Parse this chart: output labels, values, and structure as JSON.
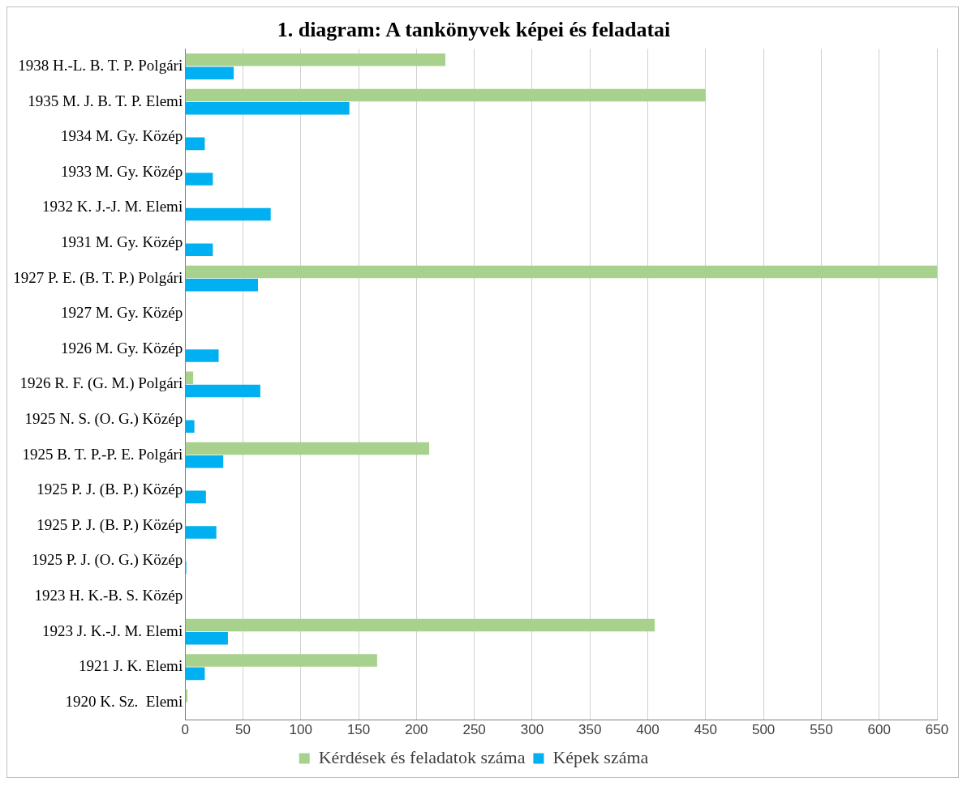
{
  "chart_data": {
    "type": "bar",
    "orientation": "horizontal",
    "title": "1. diagram: A tankönyvek képei és feladatai",
    "categories": [
      "1938 H.-L. B. T. P. Polgári",
      "1935 M. J. B. T. P. Elemi",
      "1934 M. Gy. Közép",
      "1933 M. Gy. Közép",
      "1932 K. J.-J. M. Elemi",
      "1931 M. Gy. Közép",
      "1927 P. E. (B. T. P.) Polgári",
      "1927 M. Gy. Közép",
      "1926 M. Gy. Közép",
      "1926 R. F. (G. M.) Polgári",
      "1925 N. S. (O. G.) Közép",
      "1925 B. T. P.-P. E. Polgári",
      "1925 P. J. (B. P.) Közép",
      "1925 P. J. (B. P.) Közép",
      "1925 P. J. (O. G.) Közép",
      "1923 H. K.-B. S. Közép",
      "1923 J. K.-J. M. Elemi",
      "1921 J. K. Elemi",
      "1920 K. Sz.  Elemi"
    ],
    "series": [
      {
        "name": "Kérdések és feladatok száma",
        "color": "#a9d18e",
        "values": [
          225,
          450,
          null,
          null,
          null,
          null,
          650,
          null,
          null,
          7,
          null,
          211,
          null,
          null,
          null,
          null,
          406,
          166,
          2
        ]
      },
      {
        "name": "Képek száma",
        "color": "#00b0f0",
        "values": [
          42,
          142,
          17,
          24,
          74,
          24,
          63,
          null,
          29,
          65,
          8,
          33,
          18,
          27,
          1,
          null,
          37,
          17,
          null
        ]
      }
    ],
    "xlim": [
      0,
      650
    ],
    "xticks": [
      0,
      50,
      100,
      150,
      200,
      250,
      300,
      350,
      400,
      450,
      500,
      550,
      600,
      650
    ],
    "grid": "x",
    "legend": "bottom"
  }
}
